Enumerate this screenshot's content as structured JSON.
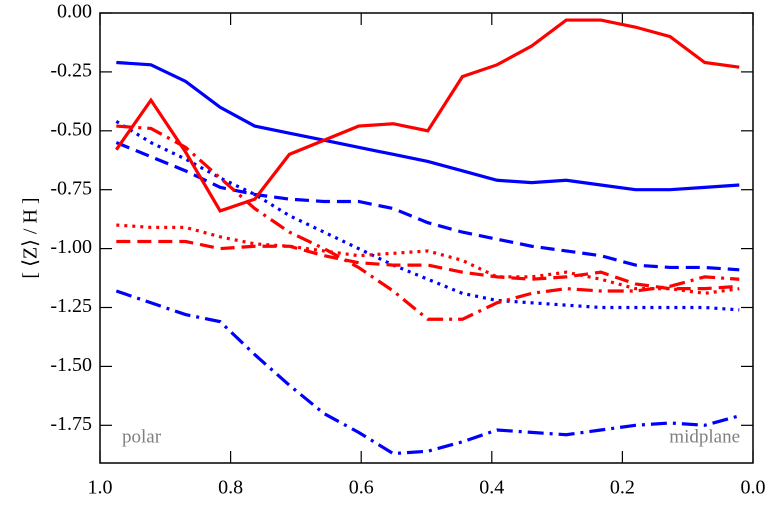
{
  "chart_data": {
    "type": "line",
    "ylabel": "[ ⟨Z⟩ / H ]",
    "annotations": [
      "polar",
      "midplane"
    ],
    "x": [
      0.975,
      0.922,
      0.869,
      0.816,
      0.763,
      0.71,
      0.657,
      0.604,
      0.551,
      0.498,
      0.445,
      0.392,
      0.339,
      0.286,
      0.233,
      0.18,
      0.127,
      0.074,
      0.021
    ],
    "xlim": [
      1.0,
      0.0
    ],
    "ylim": [
      -1.91,
      0.0
    ],
    "xticks": [
      {
        "value": 1.0,
        "label": "1.0"
      },
      {
        "value": 0.8,
        "label": "0.8"
      },
      {
        "value": 0.6,
        "label": "0.6"
      },
      {
        "value": 0.4,
        "label": "0.4"
      },
      {
        "value": 0.2,
        "label": "0.2"
      },
      {
        "value": 0.0,
        "label": "0.0"
      }
    ],
    "yticks": [
      {
        "value": 0,
        "label": "0.00"
      },
      {
        "value": -0.25,
        "label": "-0.25"
      },
      {
        "value": -0.5,
        "label": "-0.50"
      },
      {
        "value": -0.75,
        "label": "-0.75"
      },
      {
        "value": -1.0,
        "label": "-1.00"
      },
      {
        "value": -1.25,
        "label": "-1.25"
      },
      {
        "value": -1.5,
        "label": "-1.50"
      },
      {
        "value": -1.75,
        "label": "-1.75"
      }
    ],
    "series": [
      {
        "color": "#0000ff",
        "linestyle": "solid",
        "values": [
          -0.21,
          -0.22,
          -0.29,
          -0.4,
          -0.48,
          -0.51,
          -0.54,
          -0.57,
          -0.6,
          -0.63,
          -0.67,
          -0.71,
          -0.72,
          -0.71,
          -0.73,
          -0.75,
          -0.75,
          -0.74,
          -0.73
        ]
      },
      {
        "color": "#0000ff",
        "linestyle": "dashed",
        "values": [
          -0.55,
          -0.61,
          -0.67,
          -0.74,
          -0.77,
          -0.79,
          -0.8,
          -0.8,
          -0.83,
          -0.89,
          -0.93,
          -0.96,
          -0.99,
          -1.01,
          -1.03,
          -1.07,
          -1.08,
          -1.08,
          -1.09
        ]
      },
      {
        "color": "#0000ff",
        "linestyle": "dotted",
        "values": [
          -0.46,
          -0.55,
          -0.62,
          -0.7,
          -0.77,
          -0.86,
          -0.93,
          -1.0,
          -1.07,
          -1.13,
          -1.19,
          -1.22,
          -1.23,
          -1.24,
          -1.25,
          -1.25,
          -1.25,
          -1.25,
          -1.26
        ]
      },
      {
        "color": "#0000ff",
        "linestyle": "dashdot",
        "values": [
          -1.18,
          -1.23,
          -1.28,
          -1.31,
          -1.45,
          -1.58,
          -1.7,
          -1.78,
          -1.87,
          -1.86,
          -1.82,
          -1.77,
          -1.78,
          -1.79,
          -1.77,
          -1.75,
          -1.74,
          -1.75,
          -1.71
        ]
      },
      {
        "color": "#ff0000",
        "linestyle": "solid",
        "values": [
          -0.58,
          -0.37,
          -0.59,
          -0.84,
          -0.79,
          -0.6,
          -0.54,
          -0.48,
          -0.47,
          -0.5,
          -0.27,
          -0.22,
          -0.14,
          -0.03,
          -0.03,
          -0.06,
          -0.1,
          -0.21,
          -0.23
        ]
      },
      {
        "color": "#ff0000",
        "linestyle": "dashed",
        "values": [
          -0.97,
          -0.97,
          -0.97,
          -1.0,
          -0.99,
          -0.99,
          -1.03,
          -1.06,
          -1.07,
          -1.07,
          -1.1,
          -1.12,
          -1.13,
          -1.12,
          -1.1,
          -1.15,
          -1.17,
          -1.17,
          -1.16
        ]
      },
      {
        "color": "#ff0000",
        "linestyle": "dotted",
        "values": [
          -0.9,
          -0.91,
          -0.91,
          -0.95,
          -0.98,
          -0.99,
          -1.01,
          -1.03,
          -1.02,
          -1.01,
          -1.05,
          -1.12,
          -1.12,
          -1.1,
          -1.13,
          -1.17,
          -1.17,
          -1.19,
          -1.17
        ]
      },
      {
        "color": "#ff0000",
        "linestyle": "dashdot",
        "values": [
          -0.48,
          -0.49,
          -0.57,
          -0.7,
          -0.83,
          -0.93,
          -1.0,
          -1.08,
          -1.18,
          -1.3,
          -1.3,
          -1.23,
          -1.19,
          -1.17,
          -1.18,
          -1.18,
          -1.16,
          -1.12,
          -1.13
        ]
      }
    ]
  }
}
